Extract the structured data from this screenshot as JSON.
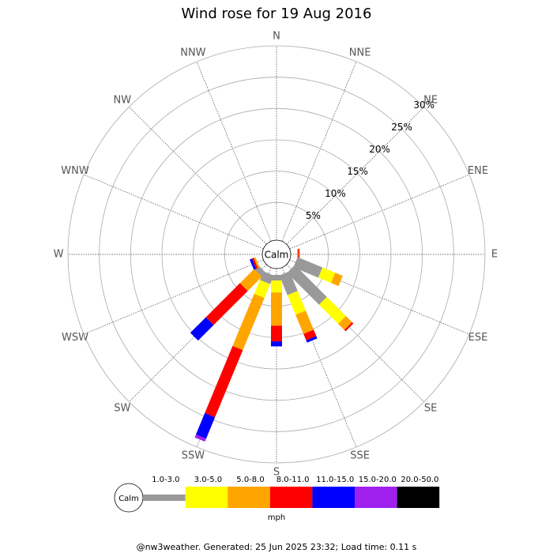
{
  "chart_data": {
    "type": "windrose",
    "title": "Wind rose for 19 Aug 2016",
    "calm_label": "Calm",
    "unit_label": "mph",
    "footer": "@nw3weather. Generated: 25 Jun 2025 23:32; Load time: 0.11 s",
    "categories": [
      "N",
      "NNE",
      "NE",
      "ENE",
      "E",
      "ESE",
      "SE",
      "SSE",
      "S",
      "SSW",
      "SW",
      "WSW",
      "W",
      "WNW",
      "NW",
      "NNW"
    ],
    "rlim": [
      0,
      30
    ],
    "rticks": [
      {
        "value": 5,
        "label": "5%"
      },
      {
        "value": 10,
        "label": "10%"
      },
      {
        "value": 15,
        "label": "15%"
      },
      {
        "value": 20,
        "label": "20%"
      },
      {
        "value": 25,
        "label": "25%"
      },
      {
        "value": 30,
        "label": "30%"
      }
    ],
    "grid": true,
    "series": [
      {
        "name": "1.0-3.0",
        "color": "#999999",
        "values": [
          0,
          0,
          0,
          0,
          0,
          4.3,
          7.2,
          3.4,
          0.9,
          1.5,
          0.9,
          0,
          0,
          0,
          0,
          0
        ]
      },
      {
        "name": "3.0-5.0",
        "color": "#ffff00",
        "values": [
          0,
          0,
          0,
          0,
          0,
          2.2,
          4.3,
          3.4,
          1.9,
          2.4,
          0,
          0,
          0,
          0,
          0,
          0
        ]
      },
      {
        "name": "5.0-8.0",
        "color": "#ffa500",
        "values": [
          0,
          0,
          0,
          0,
          0.2,
          1.3,
          1.4,
          3.3,
          5.3,
          9,
          3.2,
          0.3,
          0,
          0,
          0,
          0
        ]
      },
      {
        "name": "8.0-11.0",
        "color": "#ff0000",
        "values": [
          0,
          0,
          0,
          0,
          0.2,
          0,
          0.3,
          1.1,
          2.5,
          11.6,
          7.7,
          0.3,
          0,
          0,
          0,
          0
        ]
      },
      {
        "name": "11.0-15.0",
        "color": "#0000ff",
        "values": [
          0,
          0,
          0,
          0,
          0,
          0,
          0,
          0.4,
          0.8,
          3.7,
          3.5,
          0.4,
          0,
          0,
          0,
          0
        ]
      },
      {
        "name": "15.0-20.0",
        "color": "#a020f0",
        "values": [
          0,
          0,
          0,
          0,
          0,
          0,
          0,
          0,
          0,
          0.5,
          0,
          0,
          0,
          0,
          0,
          0
        ]
      },
      {
        "name": "20.0-50.0",
        "color": "#000000",
        "values": [
          0,
          0,
          0,
          0,
          0,
          0,
          0,
          0,
          0,
          0,
          0,
          0,
          0,
          0,
          0,
          0
        ]
      }
    ]
  }
}
